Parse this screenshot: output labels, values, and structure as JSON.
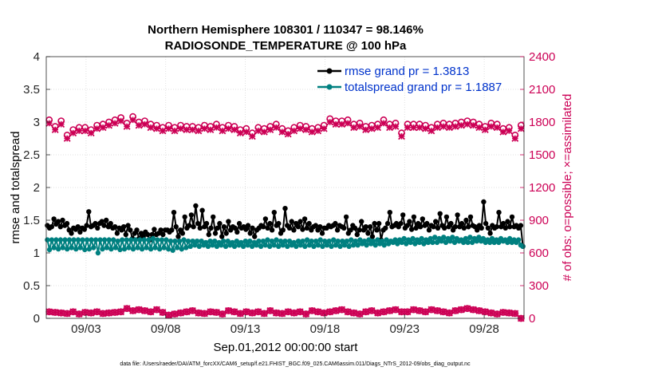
{
  "chart_data": {
    "type": "line",
    "title_line1": "Northern Hemisphere 108301 / 110347 = 98.146%",
    "title_line2": "RADIOSONDE_TEMPERATURE @ 100 hPa",
    "ylabel_left": "rmse and totalspread",
    "ylabel_right": "# of obs: o=possible; ×=assimilated",
    "xlabel": "Sep.01,2012 00:00:00 start",
    "footnote": "data file: /Users/raeder/DAI/ATM_forcXX/CAM6_setup/f.e21.FHIST_BGC.f09_025.CAM6assim.011/Diags_NTrS_2012-09/obs_diag_output.nc",
    "x_range_days": [
      0.5,
      30.5
    ],
    "xticks": [
      {
        "day": 3,
        "label": "09/03"
      },
      {
        "day": 8,
        "label": "09/08"
      },
      {
        "day": 13,
        "label": "09/13"
      },
      {
        "day": 18,
        "label": "09/18"
      },
      {
        "day": 23,
        "label": "09/23"
      },
      {
        "day": 28,
        "label": "09/28"
      }
    ],
    "ylim_left": [
      0,
      4
    ],
    "yticks_left": [
      "0",
      "0.5",
      "1",
      "1.5",
      "2",
      "2.5",
      "3",
      "3.5",
      "4"
    ],
    "ylim_right": [
      0,
      2400
    ],
    "yticks_right": [
      "0",
      "300",
      "600",
      "900",
      "1200",
      "1500",
      "1800",
      "2100",
      "2400"
    ],
    "legend": [
      {
        "label": "rmse grand pr = 1.3813",
        "color": "#000000"
      },
      {
        "label": "totalspread grand pr = 1.1887",
        "color": "#008080"
      }
    ],
    "series": [
      {
        "name": "rmse grand pr = 1.3813",
        "color": "#000000",
        "values": [
          1.42,
          1.38,
          1.4,
          1.52,
          1.44,
          1.48,
          1.4,
          1.5,
          1.42,
          1.45,
          1.35,
          1.3,
          1.38,
          1.36,
          1.4,
          1.32,
          1.38,
          1.36,
          1.42,
          1.63,
          1.4,
          1.42,
          1.45,
          1.38,
          1.45,
          1.48,
          1.42,
          1.5,
          1.4,
          1.45,
          1.38,
          1.4,
          1.3,
          1.38,
          1.35,
          1.4,
          1.28,
          1.42,
          1.35,
          1.22,
          1.3,
          1.35,
          1.22,
          1.3,
          1.25,
          1.32,
          1.28,
          1.2,
          1.28,
          1.36,
          1.28,
          1.3,
          1.35,
          1.28,
          1.35,
          1.35,
          1.32,
          1.35,
          1.62,
          1.4,
          1.25,
          1.35,
          1.3,
          1.55,
          1.38,
          1.42,
          1.58,
          1.4,
          1.72,
          1.45,
          1.38,
          1.65,
          1.4,
          1.45,
          1.28,
          1.38,
          1.55,
          1.3,
          1.38,
          1.45,
          1.25,
          1.4,
          1.3,
          1.48,
          1.35,
          1.4,
          1.38,
          1.32,
          1.45,
          1.38,
          1.4,
          1.36,
          1.42,
          1.3,
          1.38,
          1.25,
          1.35,
          1.38,
          1.42,
          1.4,
          1.52,
          1.38,
          1.45,
          1.35,
          1.62,
          1.42,
          1.45,
          1.3,
          1.35,
          1.68,
          1.42,
          1.38,
          1.48,
          1.35,
          1.45,
          1.4,
          1.48,
          1.36,
          1.52,
          1.38,
          1.45,
          1.35,
          1.4,
          1.42,
          1.35,
          1.4,
          1.3,
          1.38,
          1.38,
          1.42,
          1.4,
          1.42,
          1.45,
          1.35,
          1.42,
          1.4,
          1.38,
          1.55,
          1.3,
          1.35,
          1.42,
          1.38,
          1.28,
          1.35,
          1.48,
          1.35,
          1.4,
          1.3,
          1.4,
          1.25,
          1.45,
          1.35,
          1.45,
          1.2,
          1.35,
          1.38,
          1.45,
          1.62,
          1.4,
          1.42,
          1.45,
          1.4,
          1.45,
          1.58,
          1.38,
          1.42,
          1.48,
          1.36,
          1.55,
          1.38,
          1.45,
          1.4,
          1.52,
          1.42,
          1.45,
          1.35,
          1.42,
          1.4,
          1.48,
          1.38,
          1.6,
          1.42,
          1.38,
          1.55,
          1.4,
          1.45,
          1.35,
          1.4,
          1.58,
          1.4,
          1.45,
          1.38,
          1.5,
          1.4,
          1.55,
          1.42,
          1.4,
          1.35,
          1.42,
          1.38,
          1.78,
          1.45,
          1.38,
          1.3,
          1.42,
          1.38,
          1.4,
          1.62,
          1.4,
          1.45,
          1.38,
          1.48,
          1.4,
          1.55,
          1.4,
          1.42,
          1.38,
          1.42,
          1.1
        ]
      },
      {
        "name": "totalspread grand pr = 1.1887",
        "color": "#008080",
        "values": [
          1.2,
          1.05,
          1.2,
          1.08,
          1.2,
          1.06,
          1.2,
          1.08,
          1.2,
          1.06,
          1.2,
          1.08,
          1.2,
          1.06,
          1.2,
          1.08,
          1.2,
          1.05,
          1.2,
          1.06,
          1.2,
          1.08,
          1.2,
          1.0,
          1.2,
          1.06,
          1.2,
          1.08,
          1.2,
          1.06,
          1.2,
          1.08,
          1.18,
          1.05,
          1.2,
          1.06,
          1.2,
          1.08,
          1.2,
          1.06,
          1.2,
          1.08,
          1.2,
          1.06,
          1.2,
          1.08,
          1.2,
          1.06,
          1.22,
          1.08,
          1.2,
          1.06,
          1.2,
          1.08,
          1.2,
          1.06,
          1.18,
          1.04,
          1.18,
          1.08,
          1.18,
          1.06,
          1.2,
          1.08,
          1.18,
          1.1,
          1.18,
          1.12,
          1.18,
          1.1,
          1.18,
          1.12,
          1.16,
          1.1,
          1.18,
          1.12,
          1.18,
          1.1,
          1.16,
          1.12,
          1.18,
          1.1,
          1.18,
          1.12,
          1.16,
          1.1,
          1.18,
          1.12,
          1.16,
          1.1,
          1.18,
          1.12,
          1.18,
          1.1,
          1.16,
          1.12,
          1.18,
          1.1,
          1.18,
          1.12,
          1.2,
          1.1,
          1.18,
          1.12,
          1.2,
          1.1,
          1.18,
          1.12,
          1.18,
          1.1,
          1.18,
          1.12,
          1.16,
          1.1,
          1.18,
          1.12,
          1.18,
          1.1,
          1.2,
          1.12,
          1.18,
          1.1,
          1.18,
          1.12,
          1.2,
          1.1,
          1.18,
          1.12,
          1.18,
          1.1,
          1.2,
          1.12,
          1.18,
          1.1,
          1.18,
          1.12,
          1.18,
          1.1,
          1.2,
          1.12,
          1.18,
          1.12,
          1.2,
          1.14,
          1.18,
          1.12,
          1.2,
          1.14,
          1.18,
          1.12,
          1.2,
          1.14,
          1.18,
          1.12,
          1.2,
          1.14,
          1.18,
          1.16,
          1.2,
          1.14,
          1.2,
          1.16,
          1.22,
          1.14,
          1.2,
          1.16,
          1.22,
          1.14,
          1.2,
          1.16,
          1.22,
          1.14,
          1.2,
          1.16,
          1.22,
          1.16,
          1.24,
          1.16,
          1.22,
          1.18,
          1.24,
          1.16,
          1.22,
          1.18,
          1.24,
          1.16,
          1.22,
          1.18,
          1.2,
          1.16,
          1.22,
          1.16,
          1.24,
          1.16,
          1.22,
          1.18,
          1.24,
          1.18,
          1.22,
          1.16,
          1.2,
          1.16,
          1.22,
          1.16,
          1.2,
          1.16,
          1.22,
          1.18,
          1.2,
          1.16,
          1.22,
          1.16,
          1.2,
          1.16,
          1.2,
          1.12,
          1.1
        ]
      },
      {
        "name": "possible",
        "axis": "right",
        "color": "#cc0055",
        "marker": "o",
        "values": [
          1820,
          1760,
          1810,
          1680,
          1730,
          1750,
          1750,
          1730,
          1770,
          1780,
          1800,
          1820,
          1840,
          1790,
          1850,
          1800,
          1810,
          1780,
          1770,
          1750,
          1770,
          1750,
          1770,
          1760,
          1760,
          1750,
          1770,
          1760,
          1780,
          1750,
          1770,
          1760,
          1730,
          1740,
          1700,
          1750,
          1740,
          1760,
          1780,
          1740,
          1720,
          1750,
          1770,
          1760,
          1740,
          1750,
          1770,
          1830,
          1810,
          1810,
          1820,
          1780,
          1790,
          1760,
          1770,
          1780,
          1820,
          1780,
          1790,
          1700,
          1780,
          1780,
          1780,
          1770,
          1750,
          1780,
          1790,
          1780,
          1790,
          1800,
          1810,
          1800,
          1780,
          1760,
          1790,
          1780,
          1740,
          1750,
          1680,
          1770
        ]
      },
      {
        "name": "assimilated",
        "axis": "right",
        "color": "#cc0055",
        "marker": "x",
        "values": [
          1790,
          1730,
          1780,
          1650,
          1700,
          1720,
          1720,
          1700,
          1740,
          1750,
          1770,
          1790,
          1810,
          1760,
          1820,
          1770,
          1780,
          1750,
          1740,
          1720,
          1740,
          1720,
          1740,
          1730,
          1730,
          1720,
          1740,
          1730,
          1750,
          1720,
          1740,
          1730,
          1700,
          1710,
          1670,
          1720,
          1710,
          1730,
          1750,
          1710,
          1690,
          1720,
          1740,
          1730,
          1710,
          1720,
          1740,
          1800,
          1780,
          1780,
          1790,
          1750,
          1760,
          1730,
          1740,
          1750,
          1790,
          1750,
          1760,
          1670,
          1750,
          1750,
          1750,
          1740,
          1720,
          1750,
          1760,
          1750,
          1760,
          1770,
          1780,
          1770,
          1750,
          1730,
          1760,
          1750,
          1710,
          1720,
          1650,
          1740
        ]
      },
      {
        "name": "possible_low",
        "axis": "right",
        "color": "#cc0055",
        "marker": "o",
        "values": [
          60,
          55,
          50,
          45,
          60,
          40,
          55,
          50,
          60,
          45,
          50,
          55,
          60,
          90,
          70,
          80,
          70,
          60,
          80,
          55,
          30,
          40,
          50,
          60,
          70,
          50,
          45,
          60,
          55,
          40,
          70,
          60,
          45,
          60,
          50,
          60,
          45,
          70,
          50,
          45,
          60,
          50,
          60,
          40,
          70,
          60,
          50,
          60,
          70,
          80,
          60,
          50,
          40,
          60,
          70,
          50,
          60,
          70,
          80,
          60,
          60,
          80,
          70,
          60,
          80,
          70,
          60,
          50,
          70,
          80,
          90,
          80,
          70,
          60,
          50,
          40,
          55,
          50,
          45,
          0
        ]
      },
      {
        "name": "assimilated_low",
        "axis": "right",
        "color": "#cc0055",
        "marker": "x",
        "values": [
          60,
          55,
          50,
          45,
          60,
          40,
          55,
          50,
          60,
          45,
          50,
          55,
          60,
          90,
          70,
          80,
          70,
          60,
          80,
          55,
          30,
          40,
          50,
          60,
          70,
          50,
          45,
          60,
          55,
          40,
          70,
          60,
          45,
          60,
          50,
          60,
          45,
          70,
          50,
          45,
          60,
          50,
          60,
          40,
          70,
          60,
          50,
          60,
          70,
          80,
          60,
          50,
          40,
          60,
          70,
          50,
          60,
          70,
          80,
          60,
          60,
          80,
          70,
          60,
          80,
          70,
          60,
          50,
          70,
          80,
          90,
          80,
          70,
          60,
          50,
          40,
          55,
          50,
          45,
          0
        ]
      }
    ]
  }
}
